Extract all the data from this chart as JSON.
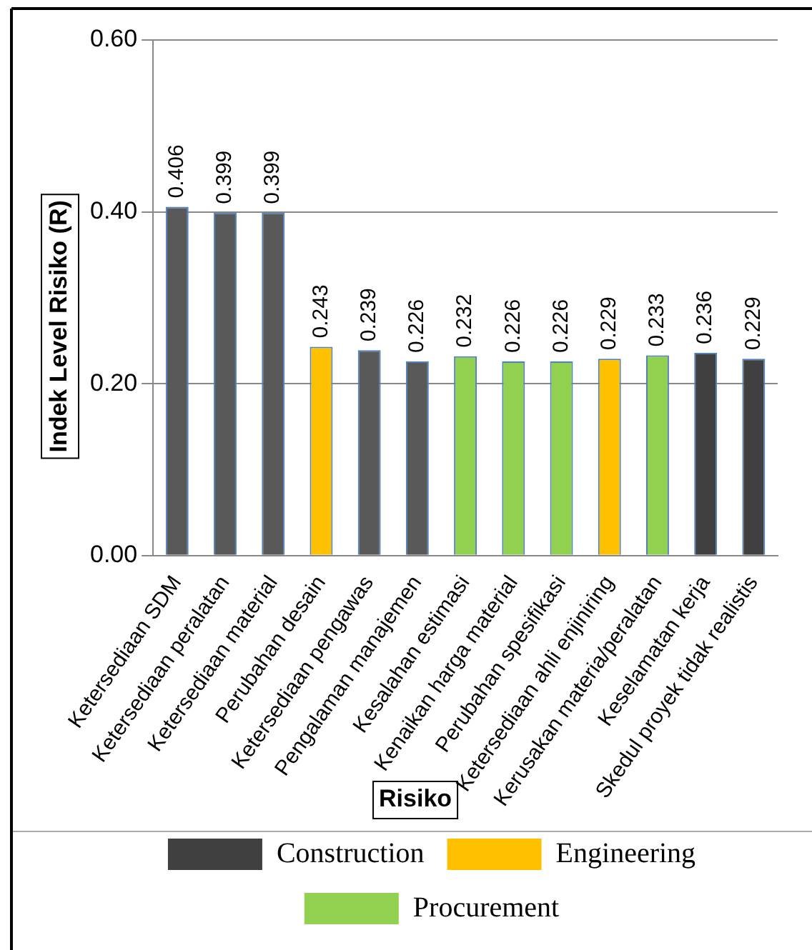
{
  "chart_data": {
    "type": "bar",
    "xlabel": "Risiko",
    "ylabel": "Indek Level Risiko (R)",
    "categories": [
      "Ketersediaan SDM",
      "Ketersediaan peralatan",
      "Ketersediaan material",
      "Perubahan desain",
      "Ketersediaan pengawas",
      "Pengalaman manajemen",
      "Kesalahan estimasi",
      "Kenaikan harga material",
      "Perubahan spesifikasi",
      "Ketersediaan ahli enjiniring",
      "Kerusakan materia/peralatan",
      "Keselamatan kerja",
      "Skedul proyek tidak realistis"
    ],
    "series": [
      {
        "name": "Construction",
        "color": "#404040",
        "colors": [
          "#595959",
          "#595959",
          "#595959",
          null,
          "#595959",
          "#595959",
          null,
          null,
          null,
          null,
          null,
          "#404040",
          "#404040"
        ],
        "values": [
          0.406,
          0.399,
          0.399,
          null,
          0.239,
          0.226,
          null,
          null,
          null,
          null,
          null,
          0.236,
          0.229
        ]
      },
      {
        "name": "Engineering",
        "color": "#ffc000",
        "values": [
          null,
          null,
          null,
          0.243,
          null,
          null,
          null,
          null,
          null,
          0.229,
          null,
          null,
          null
        ]
      },
      {
        "name": "Procurement",
        "color": "#92d050",
        "values": [
          null,
          null,
          null,
          null,
          null,
          null,
          0.232,
          0.226,
          0.226,
          null,
          0.233,
          null,
          null
        ]
      }
    ],
    "ylim": [
      0,
      0.6
    ],
    "yticks": [
      {
        "value": 0,
        "label": "0.00"
      },
      {
        "value": 0.2,
        "label": "0.20"
      },
      {
        "value": 0.4,
        "label": "0.40"
      },
      {
        "value": 0.6,
        "label": "0.60"
      }
    ],
    "grid": "y",
    "legend": "bottom",
    "data_labels": true
  }
}
